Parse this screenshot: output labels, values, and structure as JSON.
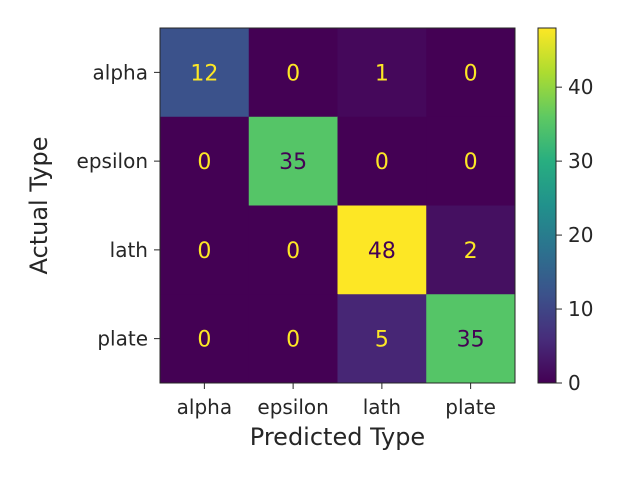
{
  "chart_data": {
    "type": "heatmap",
    "title": "",
    "xlabel": "Predicted Type",
    "ylabel": "Actual Type",
    "x_categories": [
      "alpha",
      "epsilon",
      "lath",
      "plate"
    ],
    "y_categories": [
      "alpha",
      "epsilon",
      "lath",
      "plate"
    ],
    "values": [
      [
        12,
        0,
        1,
        0
      ],
      [
        0,
        35,
        0,
        0
      ],
      [
        0,
        0,
        48,
        2
      ],
      [
        0,
        0,
        5,
        35
      ]
    ],
    "colormap": "viridis",
    "colorbar": {
      "min": 0,
      "max": 48,
      "ticks": [
        0,
        10,
        20,
        30,
        40
      ]
    },
    "grid": false,
    "colors": {
      "text_on_dark": "#fde725",
      "text_on_light": "#440154"
    }
  }
}
